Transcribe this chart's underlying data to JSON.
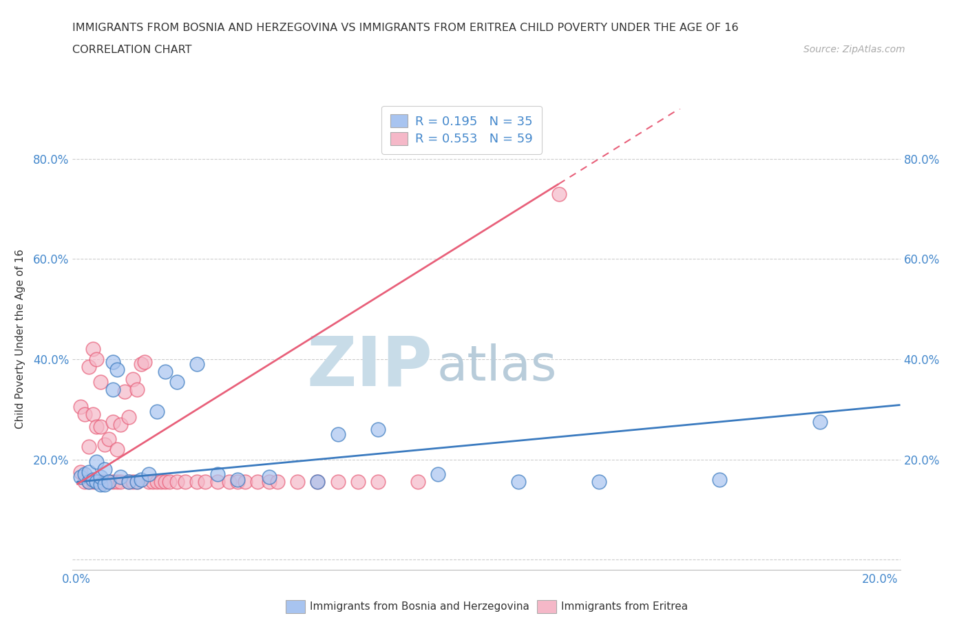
{
  "title_line1": "IMMIGRANTS FROM BOSNIA AND HERZEGOVINA VS IMMIGRANTS FROM ERITREA CHILD POVERTY UNDER THE AGE OF 16",
  "title_line2": "CORRELATION CHART",
  "source_text": "Source: ZipAtlas.com",
  "ylabel": "Child Poverty Under the Age of 16",
  "xlim": [
    -0.001,
    0.205
  ],
  "ylim": [
    -0.02,
    0.9
  ],
  "x_ticks": [
    0.0,
    0.04,
    0.08,
    0.12,
    0.16,
    0.2
  ],
  "x_tick_labels": [
    "0.0%",
    "",
    "",
    "",
    "",
    "20.0%"
  ],
  "y_ticks": [
    0.0,
    0.2,
    0.4,
    0.6,
    0.8
  ],
  "y_tick_labels": [
    "",
    "20.0%",
    "40.0%",
    "60.0%",
    "80.0%"
  ],
  "color_bosnia": "#a8c4f0",
  "color_eritrea": "#f5b8c8",
  "color_bosnia_line": "#3a7abf",
  "color_eritrea_line": "#e8607a",
  "color_bosnia_edge": "#3a7abf",
  "color_eritrea_edge": "#e8607a",
  "R_bosnia": 0.195,
  "N_bosnia": 35,
  "R_eritrea": 0.553,
  "N_eritrea": 59,
  "bosnia_x": [
    0.001,
    0.002,
    0.003,
    0.003,
    0.004,
    0.005,
    0.005,
    0.006,
    0.006,
    0.007,
    0.007,
    0.008,
    0.009,
    0.009,
    0.01,
    0.011,
    0.013,
    0.015,
    0.016,
    0.018,
    0.02,
    0.022,
    0.025,
    0.03,
    0.035,
    0.04,
    0.048,
    0.06,
    0.065,
    0.075,
    0.09,
    0.11,
    0.13,
    0.16,
    0.185
  ],
  "bosnia_y": [
    0.165,
    0.17,
    0.155,
    0.175,
    0.16,
    0.155,
    0.195,
    0.15,
    0.165,
    0.15,
    0.18,
    0.155,
    0.395,
    0.34,
    0.38,
    0.165,
    0.155,
    0.155,
    0.16,
    0.17,
    0.295,
    0.375,
    0.355,
    0.39,
    0.17,
    0.16,
    0.165,
    0.155,
    0.25,
    0.26,
    0.17,
    0.155,
    0.155,
    0.16,
    0.275
  ],
  "eritrea_x": [
    0.001,
    0.001,
    0.002,
    0.002,
    0.003,
    0.003,
    0.003,
    0.004,
    0.004,
    0.004,
    0.005,
    0.005,
    0.005,
    0.006,
    0.006,
    0.006,
    0.007,
    0.007,
    0.008,
    0.008,
    0.009,
    0.009,
    0.01,
    0.01,
    0.011,
    0.011,
    0.012,
    0.013,
    0.013,
    0.014,
    0.014,
    0.015,
    0.015,
    0.016,
    0.017,
    0.018,
    0.019,
    0.02,
    0.021,
    0.022,
    0.023,
    0.025,
    0.027,
    0.03,
    0.032,
    0.035,
    0.038,
    0.04,
    0.042,
    0.045,
    0.048,
    0.05,
    0.055,
    0.06,
    0.065,
    0.07,
    0.075,
    0.085,
    0.12
  ],
  "eritrea_y": [
    0.175,
    0.305,
    0.155,
    0.29,
    0.155,
    0.225,
    0.385,
    0.155,
    0.29,
    0.42,
    0.155,
    0.265,
    0.4,
    0.155,
    0.265,
    0.355,
    0.155,
    0.23,
    0.155,
    0.24,
    0.155,
    0.275,
    0.155,
    0.22,
    0.155,
    0.27,
    0.335,
    0.155,
    0.285,
    0.155,
    0.36,
    0.155,
    0.34,
    0.39,
    0.395,
    0.155,
    0.155,
    0.155,
    0.155,
    0.155,
    0.155,
    0.155,
    0.155,
    0.155,
    0.155,
    0.155,
    0.155,
    0.155,
    0.155,
    0.155,
    0.155,
    0.155,
    0.155,
    0.155,
    0.155,
    0.155,
    0.155,
    0.155,
    0.73
  ],
  "eritrea_line_solid_end": 0.12,
  "watermark_zip": "ZIP",
  "watermark_atlas": "atlas",
  "watermark_color_zip": "#c8dce8",
  "watermark_color_atlas": "#b8ccda",
  "background_color": "#ffffff",
  "grid_color": "#cccccc",
  "tick_color": "#4488cc",
  "label_color": "#333333",
  "source_color": "#aaaaaa"
}
